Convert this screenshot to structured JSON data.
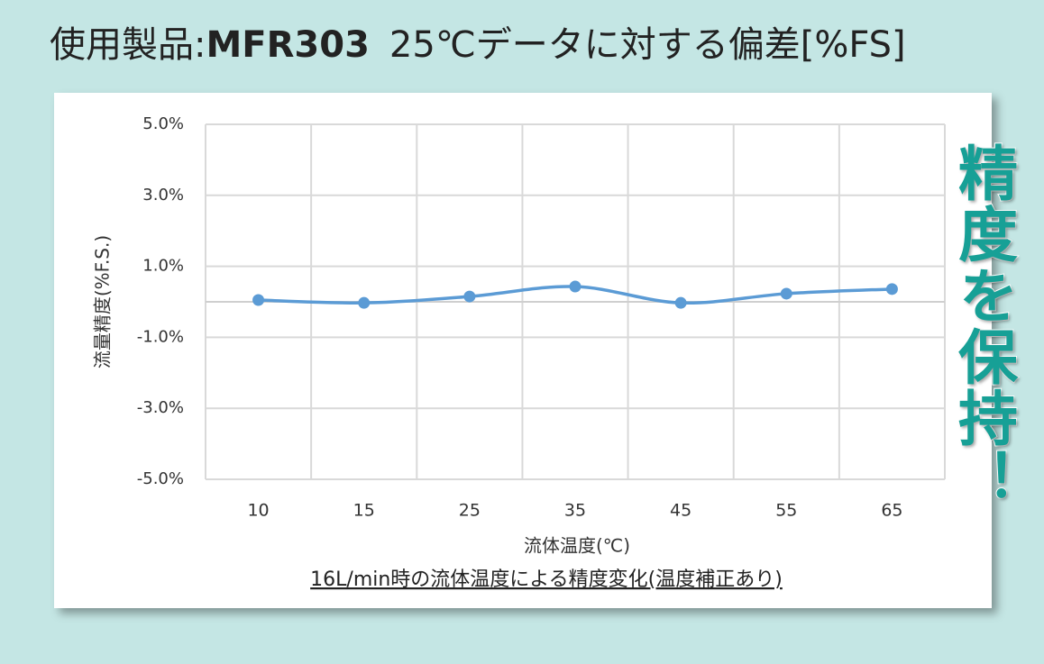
{
  "header": {
    "title_prefix": "使用製品:",
    "title_product": "MFR303",
    "title_suffix": "25℃データに対する偏差[%FS]"
  },
  "side_note": "精度を保持！",
  "chart_data": {
    "type": "line",
    "categories": [
      "10",
      "15",
      "25",
      "35",
      "45",
      "55",
      "65"
    ],
    "series": [
      {
        "color": "#5b9bd5",
        "values": [
          0.05,
          -0.03,
          0.15,
          0.43,
          -0.03,
          0.23,
          0.36
        ]
      }
    ],
    "ylim": [
      -5,
      5
    ],
    "yticks": [
      {
        "value": 5,
        "label": "5.0%"
      },
      {
        "value": 3,
        "label": "3.0%"
      },
      {
        "value": 1,
        "label": "1.0%"
      },
      {
        "value": -1,
        "label": "-1.0%"
      },
      {
        "value": -3,
        "label": "-3.0%"
      },
      {
        "value": -5,
        "label": "-5.0%"
      }
    ],
    "grid": true,
    "smooth": true,
    "x_label": "流体温度(℃)",
    "y_label": "流量精度(%F.S.)",
    "caption": "16L/min時の流体温度による精度変化(温度補正あり)"
  }
}
